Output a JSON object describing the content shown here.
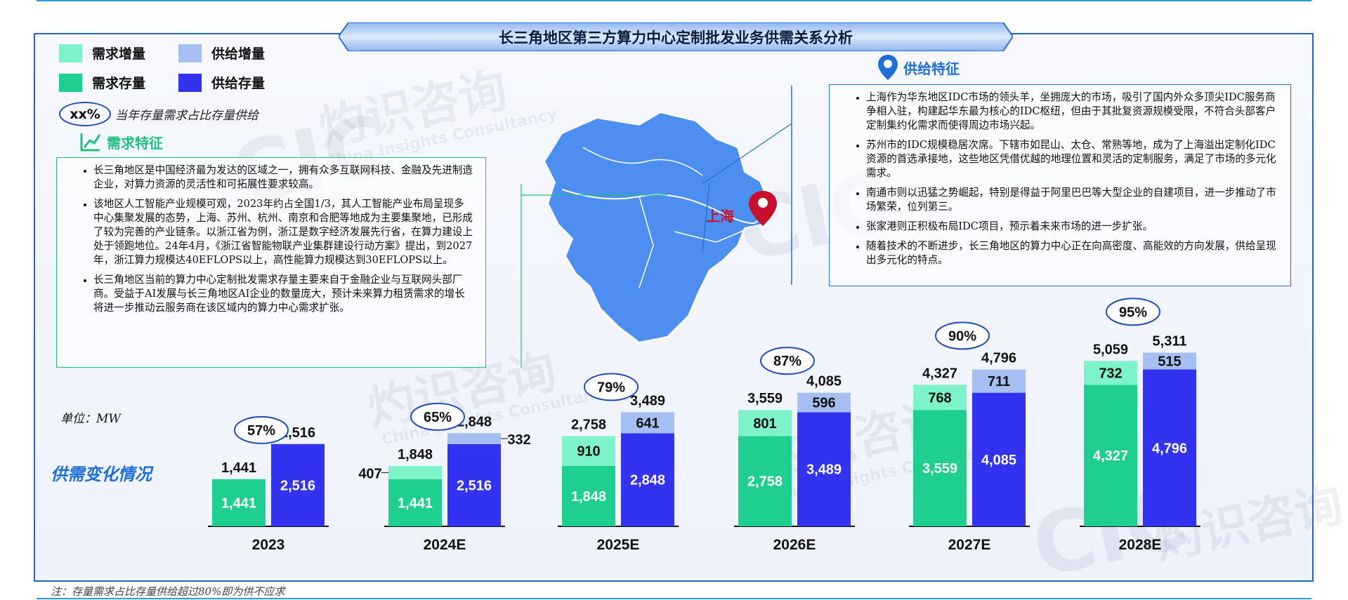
{
  "title": "长三角地区第三方算力中心定制批发业务供需关系分析",
  "legend": {
    "demand_increment": "需求增量",
    "supply_increment": "供给增量",
    "demand_stock": "需求存量",
    "supply_stock": "供给存量",
    "ratio_example": "xx%",
    "ratio_text": "当年存量需求占比存量供给"
  },
  "colors": {
    "demand_increment": "#7ef2c8",
    "supply_increment": "#a6bff2",
    "demand_stock": "#1ecf8f",
    "supply_stock": "#3333ef",
    "accent": "#1f6fd6",
    "green_accent": "#1fbf7f"
  },
  "demand_section": {
    "heading": "需求特征",
    "bullets": [
      "长三角地区是中国经济最为发达的区域之一，拥有众多互联网科技、金融及先进制造企业，对算力资源的灵活性和可拓展性要求较高。",
      "该地区人工智能产业规模可观，2023年约占全国1/3，其人工智能产业布局呈现多中心集聚发展的态势，上海、苏州、杭州、南京和合肥等地成为主要集聚地，已形成了较为完善的产业链条。以浙江省为例，浙江是数字经济发展先行省，在算力建设上处于领跑地位。24年4月，《浙江省智能物联产业集群建设行动方案》提出，到2027年，浙江算力规模达40EFLOPS以上，高性能算力规模达到30EFLOPS以上。",
      "长三角地区当前的算力中心定制批发需求存量主要来自于金融企业与互联网头部厂商。受益于AI发展与长三角地区AI企业的数量庞大，预计未来算力租赁需求的增长将进一步推动云服务商在该区域内的算力中心需求扩张。"
    ]
  },
  "supply_section": {
    "heading": "供给特征",
    "bullets": [
      "上海作为华东地区IDC市场的领头羊，坐拥庞大的市场，吸引了国内外众多顶尖IDC服务商争相入驻，构建起华东最为核心的IDC枢纽，但由于其批复资源规模受限，不符合头部客户定制集约化需求而使得周边市场兴起。",
      "苏州市的IDC规模稳居次席。下辖市如昆山、太仓、常熟等地，成为了上海溢出定制化IDC资源的首选承接地，这些地区凭借优越的地理位置和灵活的定制服务，满足了市场的多元化需求。",
      "南通市则以迅猛之势崛起，特别是得益于阿里巴巴等大型企业的自建项目，进一步推动了市场繁荣，位列第三。",
      "张家港则正积极布局IDC项目，预示着未来市场的进一步扩张。",
      "随着技术的不断进步，长三角地区的算力中心正在向高密度、高能效的方向发展，供给呈现出多元化的特点。"
    ]
  },
  "map": {
    "city_label": "上海",
    "pin_icon": "location-pin-icon"
  },
  "unit": "单位：MW",
  "chart_section_label": "供需变化情况",
  "note": "注：存量需求占比存量供给超过80%即为供不应求",
  "chart_data": {
    "type": "bar",
    "subtype": "stacked-grouped",
    "categories": [
      "2023",
      "2024E",
      "2025E",
      "2026E",
      "2027E",
      "2028E"
    ],
    "series": [
      {
        "name": "需求存量",
        "group": "demand",
        "values": [
          1441,
          1441,
          1848,
          2758,
          3559,
          4327
        ]
      },
      {
        "name": "需求增量",
        "group": "demand",
        "values": [
          0,
          407,
          910,
          801,
          768,
          732
        ]
      },
      {
        "name": "供给存量",
        "group": "supply",
        "values": [
          2516,
          2516,
          2848,
          3489,
          4085,
          4796
        ]
      },
      {
        "name": "供给增量",
        "group": "supply",
        "values": [
          0,
          332,
          641,
          596,
          711,
          515
        ]
      }
    ],
    "demand_totals": [
      "1,441",
      "1,848",
      "2,758",
      "3,559",
      "4,327",
      "5,059"
    ],
    "supply_totals": [
      "2,516",
      "2,848",
      "3,489",
      "4,085",
      "4,796",
      "5,311"
    ],
    "demand_stock_labels": [
      "1,441",
      "1,441",
      "1,848",
      "2,758",
      "3,559",
      "4,327"
    ],
    "demand_inc_labels": [
      "",
      "407",
      "910",
      "801",
      "768",
      "732"
    ],
    "supply_stock_labels": [
      "2,516",
      "2,516",
      "2,848",
      "3,489",
      "4,085",
      "4,796"
    ],
    "supply_inc_labels": [
      "",
      "332",
      "641",
      "596",
      "711",
      "515"
    ],
    "ratios": [
      "57%",
      "65%",
      "79%",
      "87%",
      "90%",
      "95%"
    ],
    "ylim": [
      0,
      5311
    ],
    "xlabel": "",
    "ylabel": ""
  },
  "watermark": {
    "cn": "灼识咨询",
    "en": "China Insights Consultancy",
    "logo": "CIC"
  }
}
